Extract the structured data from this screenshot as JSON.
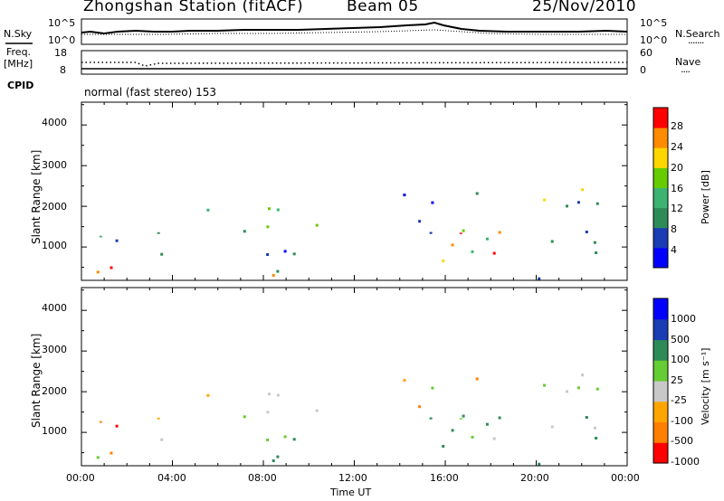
{
  "header": {
    "title": "Zhongshan Station (fitACF)",
    "beam": "Beam 05",
    "date": "25/Nov/2010"
  },
  "nsky_panel": {
    "left_label": "N.Sky",
    "left_ticks": [
      "10^5",
      "10^0"
    ],
    "right_ticks": [
      "10^5",
      "10^0"
    ],
    "right_label": "N.Search",
    "right_legend": "·······"
  },
  "freq_panel": {
    "left_label_1": "Freq.",
    "left_label_2": "[MHz]",
    "left_ticks": [
      "18",
      "8"
    ],
    "right_ticks": [
      "60",
      "0"
    ],
    "right_label": "Nave",
    "right_legend": "····"
  },
  "cpid": {
    "label": "CPID",
    "value": "normal (fast stereo) 153"
  },
  "chart_data": [
    {
      "type": "heatmap",
      "name": "power",
      "ylabel": "Slant Range [km]",
      "yticks": [
        "4000",
        "3000",
        "2000",
        "1000"
      ],
      "ylim": [
        180,
        4560
      ],
      "xlim_hours": [
        0,
        24
      ],
      "colorbar": {
        "label": "Power [dB]",
        "ticks": [
          "28",
          "24",
          "20",
          "16",
          "12",
          "8",
          "4"
        ],
        "colors": [
          "#0000ff",
          "#1a3cb4",
          "#2e8b57",
          "#3cb371",
          "#66cc00",
          "#ffd700",
          "#ff8c00",
          "#ff0000"
        ]
      }
    },
    {
      "type": "heatmap",
      "name": "velocity",
      "ylabel": "Slant Range [km]",
      "yticks": [
        "4000",
        "3000",
        "2000",
        "1000"
      ],
      "ylim": [
        180,
        4560
      ],
      "xlim_hours": [
        0,
        24
      ],
      "colorbar": {
        "label": "Velocity [m s⁻¹]",
        "ticks": [
          "1000",
          "500",
          "100",
          "25",
          "-25",
          "-100",
          "-500",
          "-1000"
        ],
        "colors": [
          "#0000ff",
          "#1a3cb4",
          "#2e8b57",
          "#66cc33",
          "#c8c8c8",
          "#ffa500",
          "#ff7f00",
          "#ff0000"
        ]
      }
    }
  ],
  "xaxis": {
    "ticks": [
      "00:00",
      "04:00",
      "08:00",
      "12:00",
      "16:00",
      "20:00",
      "00:00"
    ],
    "label": "Time UT"
  }
}
